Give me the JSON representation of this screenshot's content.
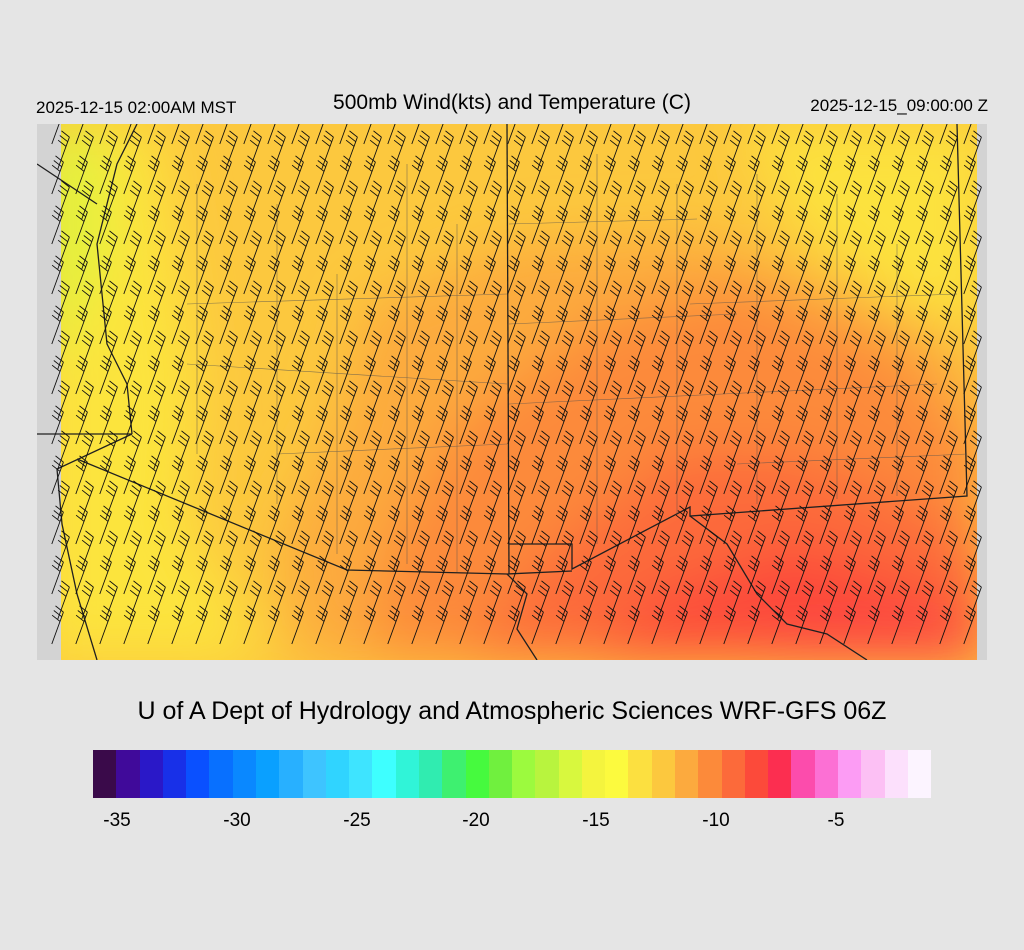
{
  "header": {
    "local_time": "2025-12-15 02:00AM MST",
    "title": "500mb Wind(kts) and Temperature (C)",
    "valid_time": "2025-12-15_09:00:00 Z"
  },
  "credit": "U of A Dept of Hydrology and Atmospheric Sciences WRF-GFS 06Z",
  "colorbar": {
    "colors": [
      "#3a0a4a",
      "#400a9a",
      "#2a18c8",
      "#1830e8",
      "#0a50ff",
      "#0870ff",
      "#0a88ff",
      "#0aa0ff",
      "#28b0ff",
      "#3ec4ff",
      "#30d4ff",
      "#3ee4ff",
      "#3effff",
      "#30f4d8",
      "#30ecb0",
      "#3ef070",
      "#46fa3e",
      "#70f03e",
      "#9cfa3e",
      "#b8f43e",
      "#d8f83e",
      "#f4f43e",
      "#fcfa3e",
      "#fce040",
      "#fcc83e",
      "#fcaa3e",
      "#fc8a3a",
      "#fc6a3a",
      "#fc4a3a",
      "#fc2e50",
      "#fc4cac",
      "#fc70d4",
      "#fc9cf4",
      "#fcc0f4",
      "#fce0fc",
      "#fcf4ff"
    ],
    "tick_labels": [
      "-35",
      "-30",
      "-25",
      "-20",
      "-15",
      "-10",
      "-5"
    ]
  },
  "map": {
    "field": "500mb temperature (C)",
    "wind": "southwesterly barbs"
  }
}
